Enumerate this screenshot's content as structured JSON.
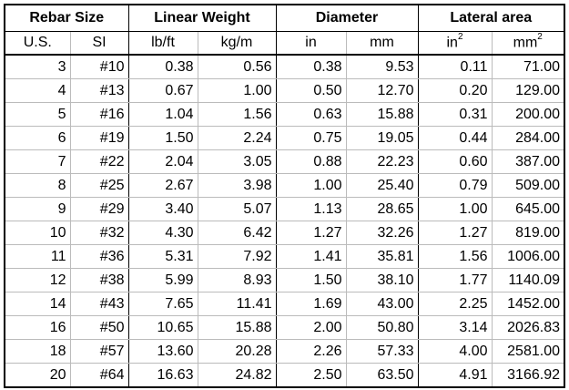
{
  "table": {
    "groups": [
      "Rebar Size",
      "Linear Weight",
      "Diameter",
      "Lateral area"
    ],
    "units": [
      "U.S.",
      "SI",
      "lb/ft",
      "kg/m",
      "in",
      "mm",
      {
        "base": "in",
        "sup": "2"
      },
      {
        "base": "mm",
        "sup": "2"
      }
    ],
    "rows": [
      [
        "3",
        "#10",
        "0.38",
        "0.56",
        "0.38",
        "9.53",
        "0.11",
        "71.00"
      ],
      [
        "4",
        "#13",
        "0.67",
        "1.00",
        "0.50",
        "12.70",
        "0.20",
        "129.00"
      ],
      [
        "5",
        "#16",
        "1.04",
        "1.56",
        "0.63",
        "15.88",
        "0.31",
        "200.00"
      ],
      [
        "6",
        "#19",
        "1.50",
        "2.24",
        "0.75",
        "19.05",
        "0.44",
        "284.00"
      ],
      [
        "7",
        "#22",
        "2.04",
        "3.05",
        "0.88",
        "22.23",
        "0.60",
        "387.00"
      ],
      [
        "8",
        "#25",
        "2.67",
        "3.98",
        "1.00",
        "25.40",
        "0.79",
        "509.00"
      ],
      [
        "9",
        "#29",
        "3.40",
        "5.07",
        "1.13",
        "28.65",
        "1.00",
        "645.00"
      ],
      [
        "10",
        "#32",
        "4.30",
        "6.42",
        "1.27",
        "32.26",
        "1.27",
        "819.00"
      ],
      [
        "11",
        "#36",
        "5.31",
        "7.92",
        "1.41",
        "35.81",
        "1.56",
        "1006.00"
      ],
      [
        "12",
        "#38",
        "5.99",
        "8.93",
        "1.50",
        "38.10",
        "1.77",
        "1140.09"
      ],
      [
        "14",
        "#43",
        "7.65",
        "11.41",
        "1.69",
        "43.00",
        "2.25",
        "1452.00"
      ],
      [
        "16",
        "#50",
        "10.65",
        "15.88",
        "2.00",
        "50.80",
        "3.14",
        "2026.83"
      ],
      [
        "18",
        "#57",
        "13.60",
        "20.28",
        "2.26",
        "57.33",
        "4.00",
        "2581.00"
      ],
      [
        "20",
        "#64",
        "16.63",
        "24.82",
        "2.50",
        "63.50",
        "4.91",
        "3166.92"
      ]
    ]
  }
}
